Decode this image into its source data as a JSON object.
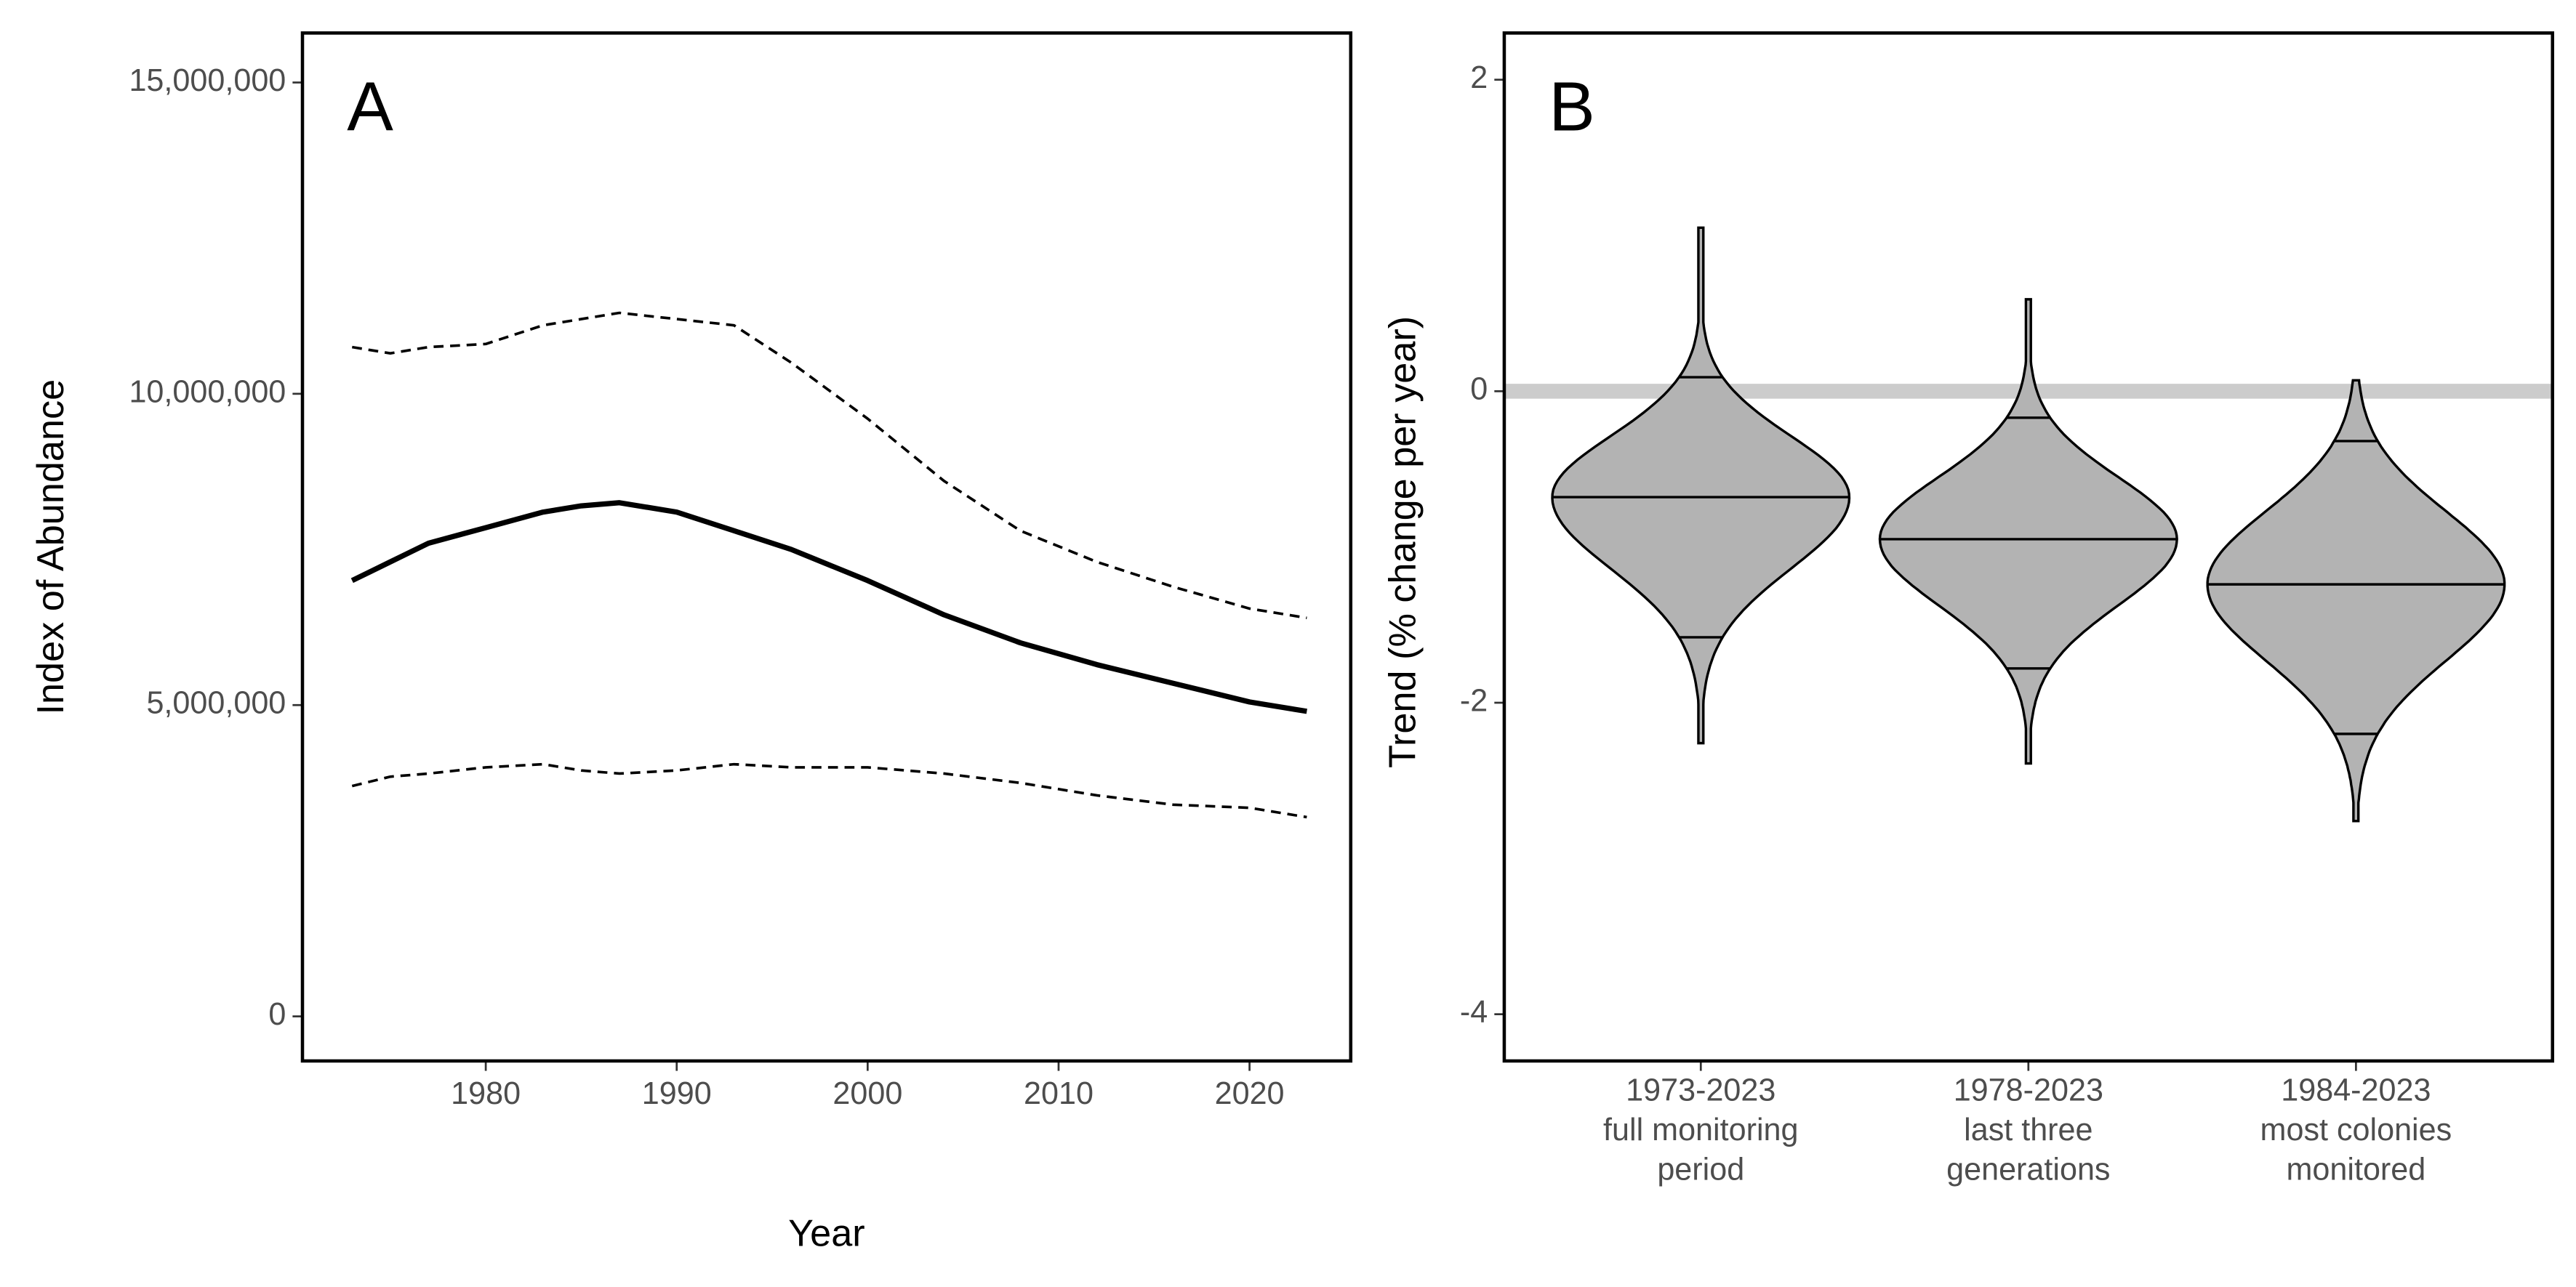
{
  "chart_data": [
    {
      "type": "line",
      "panel_label": "A",
      "xlabel": "Year",
      "ylabel": "Index of Abundance",
      "x": [
        1973,
        1975,
        1977,
        1980,
        1983,
        1985,
        1987,
        1990,
        1993,
        1996,
        2000,
        2004,
        2008,
        2012,
        2016,
        2020,
        2023
      ],
      "series": [
        {
          "color": "#000000",
          "style": "solid",
          "values": [
            7000000,
            7300000,
            7600000,
            7850000,
            8100000,
            8200000,
            8250000,
            8100000,
            7800000,
            7500000,
            7000000,
            6450000,
            6000000,
            5650000,
            5350000,
            5050000,
            4900000
          ]
        },
        {
          "color": "#000000",
          "style": "dashed",
          "values": [
            10750000,
            10650000,
            10750000,
            10800000,
            11100000,
            11200000,
            11300000,
            11200000,
            11100000,
            10500000,
            9600000,
            8600000,
            7800000,
            7300000,
            6900000,
            6550000,
            6400000
          ]
        },
        {
          "color": "#000000",
          "style": "dashed",
          "values": [
            3700000,
            3850000,
            3900000,
            4000000,
            4050000,
            3950000,
            3900000,
            3950000,
            4050000,
            4000000,
            4000000,
            3900000,
            3750000,
            3550000,
            3400000,
            3350000,
            3200000
          ]
        }
      ],
      "xlim": [
        1970.4,
        2025.3
      ],
      "xticks": [
        1980,
        1990,
        2000,
        2010,
        2020
      ],
      "ylim": [
        -716000,
        15795000
      ],
      "yticks": [
        0,
        {
          "value": 5000000,
          "label": "5,000,000"
        },
        {
          "value": 10000000,
          "label": "10,000,000"
        },
        {
          "value": 15000000,
          "label": "15,000,000"
        }
      ],
      "grid": false
    },
    {
      "type": "violin",
      "panel_label": "B",
      "ylabel": "Trend (% change per year)",
      "categories": [
        [
          "1973-2023",
          "full monitoring",
          "period"
        ],
        [
          "1978-2023",
          "last three",
          "generations"
        ],
        [
          "1984-2023",
          "most colonies",
          "monitored"
        ]
      ],
      "color": "#b3b3b3",
      "min": [
        -2.26,
        -2.39,
        -2.76
      ],
      "lower": [
        -1.58,
        -1.78,
        -2.2
      ],
      "median": [
        -0.68,
        -0.95,
        -1.24
      ],
      "upper": [
        0.09,
        -0.17,
        -0.32
      ],
      "max": [
        1.05,
        0.59,
        0.07
      ],
      "hline": 0,
      "hline_color": "#cccccc",
      "ylim": [
        -4.3,
        2.3
      ],
      "yticks": [
        -4,
        -2,
        0,
        2
      ],
      "grid": false
    }
  ]
}
